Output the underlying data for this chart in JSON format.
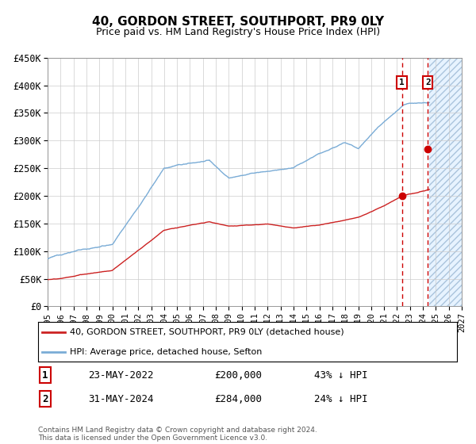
{
  "title": "40, GORDON STREET, SOUTHPORT, PR9 0LY",
  "subtitle": "Price paid vs. HM Land Registry's House Price Index (HPI)",
  "ylim": [
    0,
    450000
  ],
  "yticks": [
    0,
    50000,
    100000,
    150000,
    200000,
    250000,
    300000,
    350000,
    400000,
    450000
  ],
  "ytick_labels": [
    "£0",
    "£50K",
    "£100K",
    "£150K",
    "£200K",
    "£250K",
    "£300K",
    "£350K",
    "£400K",
    "£450K"
  ],
  "xtick_years": [
    1995,
    1996,
    1997,
    1998,
    1999,
    2000,
    2001,
    2002,
    2003,
    2004,
    2005,
    2006,
    2007,
    2008,
    2009,
    2010,
    2011,
    2012,
    2013,
    2014,
    2015,
    2016,
    2017,
    2018,
    2019,
    2020,
    2021,
    2022,
    2023,
    2024,
    2025,
    2026,
    2027
  ],
  "hpi_color": "#7aacd6",
  "price_color": "#cc2222",
  "marker_color": "#cc0000",
  "vline1_color": "#cc0000",
  "vline2_color": "#cc0000",
  "shade_color": "#ddeeff",
  "legend_label1": "40, GORDON STREET, SOUTHPORT, PR9 0LY (detached house)",
  "legend_label2": "HPI: Average price, detached house, Sefton",
  "annotation1_label": "1",
  "annotation1_date": "23-MAY-2022",
  "annotation1_price": "£200,000",
  "annotation1_hpi": "43% ↓ HPI",
  "annotation2_label": "2",
  "annotation2_date": "31-MAY-2024",
  "annotation2_price": "£284,000",
  "annotation2_hpi": "24% ↓ HPI",
  "footnote": "Contains HM Land Registry data © Crown copyright and database right 2024.\nThis data is licensed under the Open Government Licence v3.0.",
  "point1_year": 2022.38,
  "point1_price": 200000,
  "point2_year": 2024.38,
  "point2_price": 284000,
  "future_start_year": 2024.5,
  "chart_end_year": 2027,
  "xlim_start": 1995,
  "xlim_end": 2027
}
